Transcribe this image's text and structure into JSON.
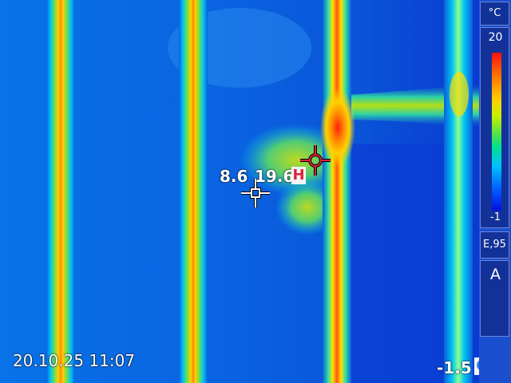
{
  "overlay": {
    "datetime": "20.10.25 11:07",
    "spot1_value": "8.6",
    "spot2_value": "19.6",
    "hot_marker": "H",
    "cold_value": "-1.5",
    "cold_marker": "C"
  },
  "sidebar": {
    "unit": "°C",
    "scale_max": "20",
    "scale_min": "-1",
    "emissivity": "E,95",
    "mode": "A"
  },
  "colors": {
    "background": "#0a5fe0",
    "cold_blue": "#0c3bd8",
    "pipe_hot": "#ff2a10",
    "pipe_warm": "#ffd400",
    "marker_hot": "#e0203a",
    "marker_cold": "#2a7be8"
  },
  "icons": [
    "crosshair-cold-icon",
    "crosshair-hot-icon",
    "crosshair-corner-icon"
  ]
}
